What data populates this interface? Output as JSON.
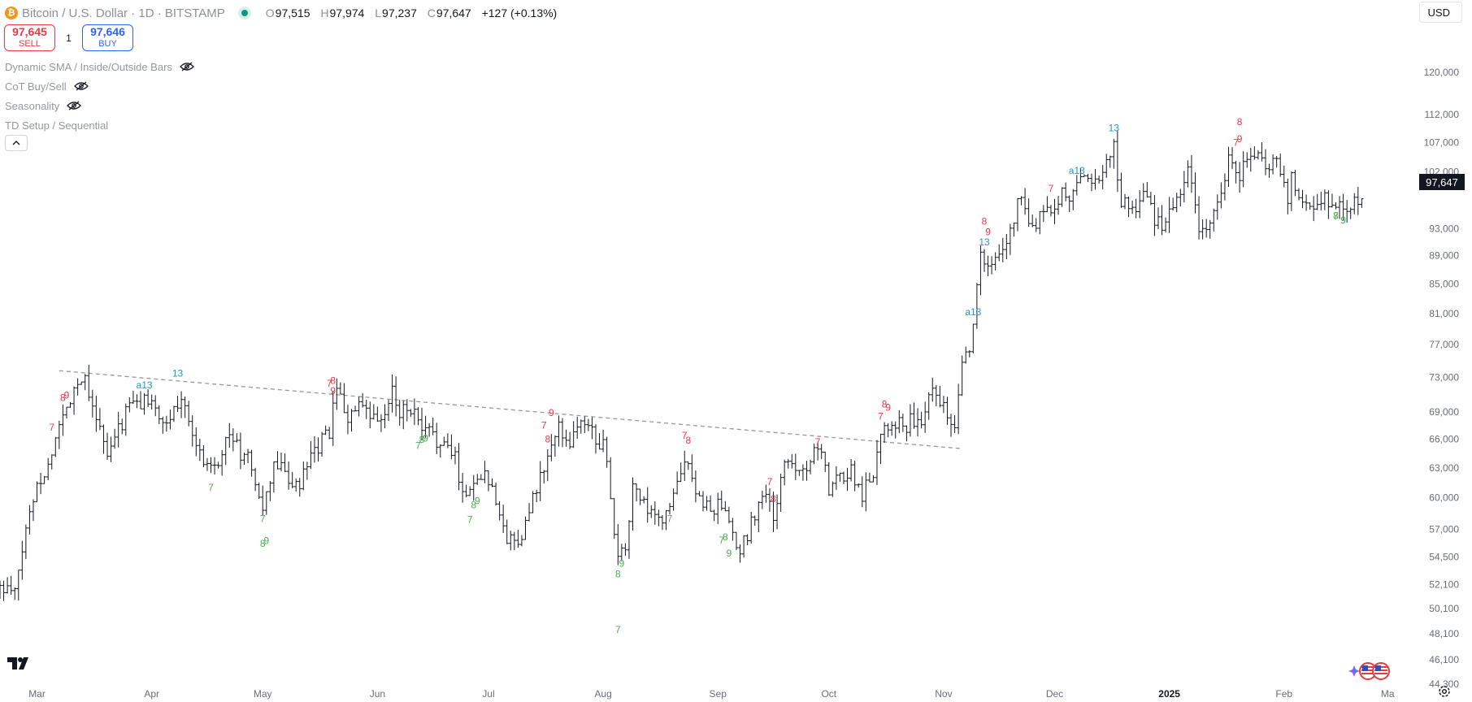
{
  "header": {
    "coin_symbol": "₿",
    "title": "Bitcoin / U.S. Dollar · 1D · BITSTAMP",
    "ohlc": {
      "o_label": "O",
      "o": "97,515",
      "h_label": "H",
      "h": "97,974",
      "l_label": "L",
      "l": "97,237",
      "c_label": "C",
      "c": "97,647",
      "change": "+127 (+0.13%)"
    }
  },
  "trade": {
    "sell_price": "97,645",
    "sell_label": "SELL",
    "quantity": "1",
    "buy_price": "97,646",
    "buy_label": "BUY"
  },
  "indicators": [
    {
      "label": "Dynamic SMA / Inside/Outside Bars",
      "icon": "eye-hidden-icon"
    },
    {
      "label": "CoT Buy/Sell",
      "icon": "eye-hidden-icon"
    },
    {
      "label": "Seasonality",
      "icon": "eye-hidden-icon"
    },
    {
      "label": "TD Setup / Sequential",
      "icon": ""
    }
  ],
  "currency": "USD",
  "last_price": "97,647",
  "colors": {
    "bar": "#131722",
    "buy_setup": "#4caf50",
    "sell_setup": "#f23645",
    "countdown": "#2196c9",
    "trendline": "#9598a1",
    "sell": "#f23645",
    "buy": "#2962ff"
  },
  "chart_data": {
    "type": "ohlc",
    "scale": "log",
    "ylim": [
      44300,
      128000
    ],
    "y_ticks": [
      120000,
      112000,
      107000,
      102000,
      97647,
      93000,
      89000,
      85000,
      81000,
      77000,
      73000,
      69000,
      66000,
      63000,
      60000,
      57000,
      54500,
      52100,
      50100,
      48100,
      46100,
      44300
    ],
    "y_tick_labels": [
      "120,000",
      "112,000",
      "107,000",
      "102,000",
      "",
      "93,000",
      "89,000",
      "85,000",
      "81,000",
      "77,000",
      "73,000",
      "69,000",
      "66,000",
      "63,000",
      "60,000",
      "57,000",
      "54,500",
      "52,100",
      "50,100",
      "48,100",
      "46,100",
      "44,300"
    ],
    "x_range": [
      "2024-02-20",
      "2025-03-06"
    ],
    "x_ticks": [
      {
        "date": "2024-03-01",
        "label": "Mar",
        "bold": false
      },
      {
        "date": "2024-04-01",
        "label": "Apr",
        "bold": false
      },
      {
        "date": "2024-05-01",
        "label": "May",
        "bold": false
      },
      {
        "date": "2024-06-01",
        "label": "Jun",
        "bold": false
      },
      {
        "date": "2024-07-01",
        "label": "Jul",
        "bold": false
      },
      {
        "date": "2024-08-01",
        "label": "Aug",
        "bold": false
      },
      {
        "date": "2024-09-01",
        "label": "Sep",
        "bold": false
      },
      {
        "date": "2024-10-01",
        "label": "Oct",
        "bold": false
      },
      {
        "date": "2024-11-01",
        "label": "Nov",
        "bold": false
      },
      {
        "date": "2024-12-01",
        "label": "Dec",
        "bold": false
      },
      {
        "date": "2025-01-01",
        "label": "2025",
        "bold": true
      },
      {
        "date": "2025-02-01",
        "label": "Feb",
        "bold": false
      },
      {
        "date": "2025-03-01",
        "label": "Ma",
        "bold": false
      }
    ],
    "close_path": [
      [
        "2024-02-20",
        51800
      ],
      [
        "2024-02-24",
        51300
      ],
      [
        "2024-02-27",
        57000
      ],
      [
        "2024-03-01",
        61500
      ],
      [
        "2024-03-04",
        63000
      ],
      [
        "2024-03-06",
        66500
      ],
      [
        "2024-03-08",
        68300
      ],
      [
        "2024-03-11",
        72000
      ],
      [
        "2024-03-14",
        73200
      ],
      [
        "2024-03-17",
        68500
      ],
      [
        "2024-03-20",
        64000
      ],
      [
        "2024-03-23",
        67000
      ],
      [
        "2024-03-26",
        69900
      ],
      [
        "2024-03-29",
        69800
      ],
      [
        "2024-04-01",
        71000
      ],
      [
        "2024-04-04",
        67000
      ],
      [
        "2024-04-07",
        69200
      ],
      [
        "2024-04-10",
        70600
      ],
      [
        "2024-04-13",
        65000
      ],
      [
        "2024-04-16",
        63500
      ],
      [
        "2024-04-19",
        64000
      ],
      [
        "2024-04-22",
        66800
      ],
      [
        "2024-04-25",
        64400
      ],
      [
        "2024-04-28",
        63400
      ],
      [
        "2024-05-01",
        58300
      ],
      [
        "2024-05-04",
        63500
      ],
      [
        "2024-05-07",
        62500
      ],
      [
        "2024-05-10",
        60800
      ],
      [
        "2024-05-13",
        62900
      ],
      [
        "2024-05-16",
        65200
      ],
      [
        "2024-05-19",
        66900
      ],
      [
        "2024-05-21",
        71400
      ],
      [
        "2024-05-24",
        68500
      ],
      [
        "2024-05-27",
        69400
      ],
      [
        "2024-05-30",
        68300
      ],
      [
        "2024-06-02",
        67700
      ],
      [
        "2024-06-05",
        71100
      ],
      [
        "2024-06-07",
        69300
      ],
      [
        "2024-06-10",
        69500
      ],
      [
        "2024-06-13",
        66700
      ],
      [
        "2024-06-16",
        66600
      ],
      [
        "2024-06-19",
        65000
      ],
      [
        "2024-06-22",
        64300
      ],
      [
        "2024-06-24",
        60300
      ],
      [
        "2024-06-27",
        61500
      ],
      [
        "2024-06-30",
        62700
      ],
      [
        "2024-07-03",
        60200
      ],
      [
        "2024-07-05",
        56600
      ],
      [
        "2024-07-08",
        55800
      ],
      [
        "2024-07-11",
        57300
      ],
      [
        "2024-07-14",
        60800
      ],
      [
        "2024-07-17",
        64100
      ],
      [
        "2024-07-20",
        67100
      ],
      [
        "2024-07-23",
        65900
      ],
      [
        "2024-07-26",
        67900
      ],
      [
        "2024-07-29",
        66800
      ],
      [
        "2024-08-01",
        65300
      ],
      [
        "2024-08-03",
        60600
      ],
      [
        "2024-08-05",
        54000
      ],
      [
        "2024-08-07",
        55300
      ],
      [
        "2024-08-09",
        60900
      ],
      [
        "2024-08-12",
        59300
      ],
      [
        "2024-08-15",
        57600
      ],
      [
        "2024-08-18",
        58400
      ],
      [
        "2024-08-21",
        61100
      ],
      [
        "2024-08-24",
        64100
      ],
      [
        "2024-08-27",
        59400
      ],
      [
        "2024-08-30",
        59100
      ],
      [
        "2024-09-02",
        59100
      ],
      [
        "2024-09-05",
        56100
      ],
      [
        "2024-09-07",
        54800
      ],
      [
        "2024-09-10",
        57600
      ],
      [
        "2024-09-13",
        60500
      ],
      [
        "2024-09-16",
        58200
      ],
      [
        "2024-09-19",
        63100
      ],
      [
        "2024-09-22",
        63500
      ],
      [
        "2024-09-25",
        63100
      ],
      [
        "2024-09-28",
        65800
      ],
      [
        "2024-10-01",
        60800
      ],
      [
        "2024-10-04",
        62000
      ],
      [
        "2024-10-07",
        62800
      ],
      [
        "2024-10-10",
        60300
      ],
      [
        "2024-10-13",
        62800
      ],
      [
        "2024-10-15",
        67000
      ],
      [
        "2024-10-18",
        68400
      ],
      [
        "2024-10-21",
        67400
      ],
      [
        "2024-10-24",
        68200
      ],
      [
        "2024-10-26",
        67000
      ],
      [
        "2024-10-29",
        72700
      ],
      [
        "2024-11-01",
        69500
      ],
      [
        "2024-11-04",
        67800
      ],
      [
        "2024-11-06",
        75600
      ],
      [
        "2024-11-08",
        76500
      ],
      [
        "2024-11-11",
        88700
      ],
      [
        "2024-11-14",
        87200
      ],
      [
        "2024-11-17",
        89800
      ],
      [
        "2024-11-20",
        94200
      ],
      [
        "2024-11-22",
        98900
      ],
      [
        "2024-11-25",
        93000
      ],
      [
        "2024-11-28",
        95600
      ],
      [
        "2024-12-01",
        97300
      ],
      [
        "2024-12-04",
        98700
      ],
      [
        "2024-12-05",
        97000
      ],
      [
        "2024-12-08",
        101200
      ],
      [
        "2024-12-11",
        101200
      ],
      [
        "2024-12-14",
        101400
      ],
      [
        "2024-12-17",
        106100
      ],
      [
        "2024-12-19",
        97500
      ],
      [
        "2024-12-22",
        95200
      ],
      [
        "2024-12-25",
        99300
      ],
      [
        "2024-12-28",
        94500
      ],
      [
        "2024-12-31",
        93500
      ],
      [
        "2025-01-03",
        98100
      ],
      [
        "2025-01-06",
        102100
      ],
      [
        "2025-01-09",
        92500
      ],
      [
        "2025-01-12",
        94500
      ],
      [
        "2025-01-14",
        96500
      ],
      [
        "2025-01-17",
        104100
      ],
      [
        "2025-01-20",
        102000
      ],
      [
        "2025-01-22",
        103700
      ],
      [
        "2025-01-25",
        104800
      ],
      [
        "2025-01-27",
        102000
      ],
      [
        "2025-01-30",
        104700
      ],
      [
        "2025-02-02",
        97700
      ],
      [
        "2025-02-03",
        101400
      ],
      [
        "2025-02-06",
        96500
      ],
      [
        "2025-02-09",
        96500
      ],
      [
        "2025-02-12",
        97800
      ],
      [
        "2025-02-15",
        97500
      ],
      [
        "2025-02-18",
        95600
      ],
      [
        "2025-02-20",
        98300
      ],
      [
        "2025-02-22",
        97647
      ]
    ],
    "trendline": [
      [
        "2024-03-07",
        73800
      ],
      [
        "2024-11-06",
        65000
      ]
    ],
    "td_labels": [
      {
        "date": "2024-03-05",
        "price": 67300,
        "text": "7",
        "kind": "sell"
      },
      {
        "date": "2024-03-08",
        "price": 70600,
        "text": "8",
        "kind": "sell"
      },
      {
        "date": "2024-03-09",
        "price": 70900,
        "text": "9",
        "kind": "sell"
      },
      {
        "date": "2024-03-30",
        "price": 72100,
        "text": "a13",
        "kind": "countdown"
      },
      {
        "date": "2024-04-08",
        "price": 73500,
        "text": "13",
        "kind": "countdown"
      },
      {
        "date": "2024-04-17",
        "price": 61000,
        "text": "7",
        "kind": "buy"
      },
      {
        "date": "2024-05-01",
        "price": 58000,
        "text": "7",
        "kind": "buy"
      },
      {
        "date": "2024-05-01",
        "price": 55700,
        "text": "8",
        "kind": "buy"
      },
      {
        "date": "2024-05-02",
        "price": 55950,
        "text": "9",
        "kind": "buy"
      },
      {
        "date": "2024-05-19",
        "price": 72300,
        "text": "7",
        "kind": "sell"
      },
      {
        "date": "2024-05-20",
        "price": 72600,
        "text": "8",
        "kind": "sell"
      },
      {
        "date": "2024-05-20",
        "price": 71400,
        "text": "9",
        "kind": "sell"
      },
      {
        "date": "2024-06-12",
        "price": 65300,
        "text": "7",
        "kind": "buy"
      },
      {
        "date": "2024-06-13",
        "price": 65950,
        "text": "8",
        "kind": "buy"
      },
      {
        "date": "2024-06-14",
        "price": 66100,
        "text": "9",
        "kind": "buy"
      },
      {
        "date": "2024-06-26",
        "price": 57900,
        "text": "7",
        "kind": "buy"
      },
      {
        "date": "2024-06-27",
        "price": 59300,
        "text": "8",
        "kind": "buy"
      },
      {
        "date": "2024-06-28",
        "price": 59700,
        "text": "9",
        "kind": "buy"
      },
      {
        "date": "2024-07-16",
        "price": 67500,
        "text": "7",
        "kind": "sell"
      },
      {
        "date": "2024-07-17",
        "price": 66000,
        "text": "8",
        "kind": "sell"
      },
      {
        "date": "2024-07-18",
        "price": 68900,
        "text": "9",
        "kind": "sell"
      },
      {
        "date": "2024-08-05",
        "price": 48400,
        "text": "7",
        "kind": "buy"
      },
      {
        "date": "2024-08-05",
        "price": 53000,
        "text": "8",
        "kind": "buy"
      },
      {
        "date": "2024-08-06",
        "price": 53900,
        "text": "9",
        "kind": "buy"
      },
      {
        "date": "2024-08-19",
        "price": 58000,
        "text": "7",
        "kind": "buy"
      },
      {
        "date": "2024-08-23",
        "price": 66400,
        "text": "7",
        "kind": "sell"
      },
      {
        "date": "2024-08-24",
        "price": 65900,
        "text": "8",
        "kind": "sell"
      },
      {
        "date": "2024-09-02",
        "price": 56000,
        "text": "7",
        "kind": "buy"
      },
      {
        "date": "2024-09-03",
        "price": 56300,
        "text": "8",
        "kind": "buy"
      },
      {
        "date": "2024-09-04",
        "price": 54800,
        "text": "9",
        "kind": "buy"
      },
      {
        "date": "2024-09-15",
        "price": 61600,
        "text": "7",
        "kind": "sell"
      },
      {
        "date": "2024-09-16",
        "price": 59900,
        "text": "8",
        "kind": "sell"
      },
      {
        "date": "2024-09-28",
        "price": 65700,
        "text": "7",
        "kind": "sell"
      },
      {
        "date": "2024-10-15",
        "price": 68500,
        "text": "7",
        "kind": "sell"
      },
      {
        "date": "2024-10-16",
        "price": 69900,
        "text": "8",
        "kind": "sell"
      },
      {
        "date": "2024-10-17",
        "price": 69500,
        "text": "9",
        "kind": "sell"
      },
      {
        "date": "2024-11-09",
        "price": 81200,
        "text": "a13",
        "kind": "countdown"
      },
      {
        "date": "2024-11-12",
        "price": 91000,
        "text": "13",
        "kind": "countdown"
      },
      {
        "date": "2024-11-12",
        "price": 94100,
        "text": "8",
        "kind": "sell"
      },
      {
        "date": "2024-11-13",
        "price": 92500,
        "text": "9",
        "kind": "sell"
      },
      {
        "date": "2024-11-30",
        "price": 99300,
        "text": "7",
        "kind": "sell"
      },
      {
        "date": "2024-12-07",
        "price": 102200,
        "text": "a13",
        "kind": "countdown"
      },
      {
        "date": "2024-12-17",
        "price": 109600,
        "text": "13",
        "kind": "countdown"
      },
      {
        "date": "2025-01-20",
        "price": 110700,
        "text": "8",
        "kind": "sell"
      },
      {
        "date": "2025-01-19",
        "price": 107000,
        "text": "7",
        "kind": "sell"
      },
      {
        "date": "2025-01-20",
        "price": 107600,
        "text": "9",
        "kind": "sell"
      },
      {
        "date": "2025-02-15",
        "price": 94900,
        "text": "7",
        "kind": "buy"
      },
      {
        "date": "2025-02-15",
        "price": 95000,
        "text": "8",
        "kind": "buy"
      },
      {
        "date": "2025-02-17",
        "price": 94300,
        "text": "9",
        "kind": "buy"
      }
    ]
  }
}
